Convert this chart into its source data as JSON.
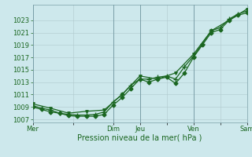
{
  "xlabel": "Pression niveau de la mer( hPa )",
  "bg_color": "#cde8ec",
  "grid_color": "#b0c8cc",
  "line_color": "#1a6620",
  "ylim": [
    1006.5,
    1025.5
  ],
  "yticks": [
    1007,
    1009,
    1011,
    1013,
    1015,
    1017,
    1019,
    1021,
    1023
  ],
  "day_labels": [
    "Mer",
    "",
    "Dim",
    "Jeu",
    "",
    "Ven",
    "",
    "Sam"
  ],
  "day_positions": [
    0,
    18,
    36,
    48,
    60,
    72,
    84,
    96
  ],
  "vline_positions": [
    0,
    36,
    48,
    72,
    96
  ],
  "series1_x": [
    0,
    4,
    8,
    12,
    16,
    20,
    24,
    28,
    32,
    36,
    40,
    44,
    48,
    52,
    56,
    60,
    64,
    68,
    72,
    76,
    80,
    84,
    88,
    92,
    96
  ],
  "series1_y": [
    1009.0,
    1008.6,
    1008.2,
    1008.0,
    1007.6,
    1007.5,
    1007.5,
    1007.5,
    1007.8,
    1009.3,
    1010.5,
    1012.0,
    1013.5,
    1013.0,
    1013.5,
    1013.8,
    1012.8,
    1014.5,
    1017.0,
    1019.0,
    1021.0,
    1021.5,
    1023.0,
    1023.8,
    1024.2
  ],
  "series2_x": [
    0,
    4,
    8,
    12,
    16,
    20,
    24,
    28,
    32,
    36,
    40,
    44,
    48,
    52,
    56,
    60,
    64,
    68,
    72,
    76,
    80,
    84,
    88,
    92,
    96
  ],
  "series2_y": [
    1009.2,
    1008.8,
    1008.5,
    1008.0,
    1007.8,
    1007.7,
    1007.7,
    1007.8,
    1008.2,
    1009.8,
    1011.0,
    1012.5,
    1013.5,
    1013.5,
    1013.8,
    1014.0,
    1013.5,
    1015.5,
    1017.2,
    1019.2,
    1021.3,
    1021.8,
    1023.2,
    1024.0,
    1024.5
  ],
  "series3_x": [
    0,
    8,
    16,
    24,
    32,
    40,
    48,
    56,
    64,
    72,
    80,
    88,
    96
  ],
  "series3_y": [
    1009.5,
    1008.8,
    1008.0,
    1008.3,
    1008.5,
    1011.0,
    1014.0,
    1013.5,
    1014.5,
    1017.5,
    1021.3,
    1023.0,
    1024.8
  ],
  "marker_size": 2.5,
  "line_width": 0.9,
  "tick_fontsize": 6,
  "xlabel_fontsize": 7
}
